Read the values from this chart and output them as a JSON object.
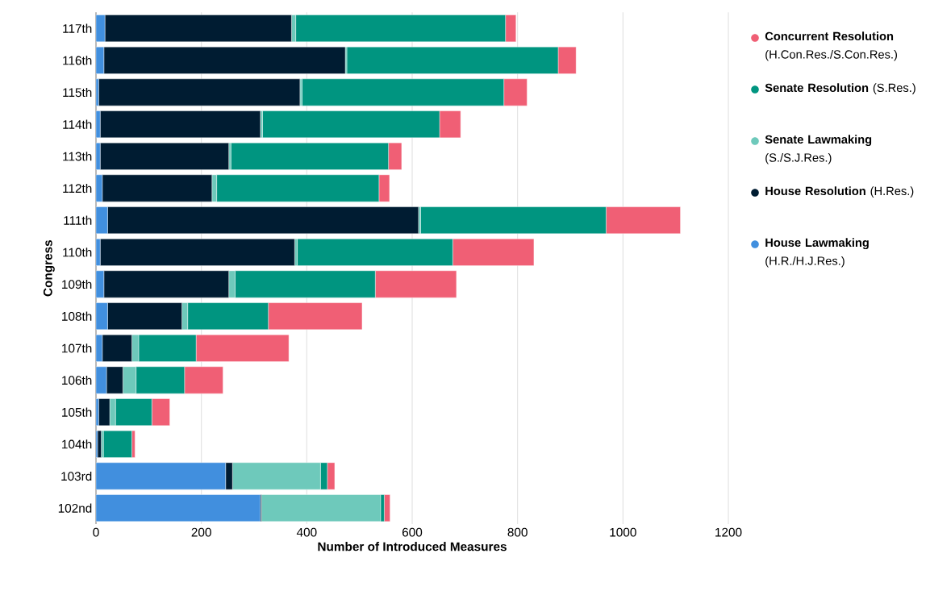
{
  "chart_data": {
    "type": "bar",
    "orientation": "horizontal",
    "stacked": true,
    "categories": [
      "117th",
      "116th",
      "115th",
      "114th",
      "113th",
      "112th",
      "111th",
      "110th",
      "109th",
      "108th",
      "107th",
      "106th",
      "105th",
      "104th",
      "103rd",
      "102nd"
    ],
    "series": [
      {
        "name": "**House Lawmaking** (H.R./H.J.Res.)",
        "color": "#418fde",
        "values": [
          17,
          15,
          5,
          8,
          8,
          12,
          22,
          8,
          15,
          22,
          12,
          20,
          5,
          3,
          246,
          312
        ]
      },
      {
        "name": "**House Resolution** (H.Res.)",
        "color": "#001c32",
        "values": [
          354,
          458,
          382,
          304,
          244,
          208,
          590,
          369,
          237,
          141,
          56,
          31,
          21,
          7,
          13,
          2
        ]
      },
      {
        "name": "**Senate Lawmaking** (S./S.J.Res.)",
        "color": "#6ec9bb",
        "values": [
          8,
          3,
          4,
          4,
          4,
          9,
          4,
          5,
          12,
          11,
          13,
          25,
          11,
          4,
          167,
          226
        ]
      },
      {
        "name": "**Senate Resolution** (S.Res.)",
        "color": "#009580",
        "values": [
          398,
          401,
          383,
          336,
          299,
          308,
          352,
          295,
          266,
          153,
          109,
          92,
          69,
          54,
          13,
          7
        ]
      },
      {
        "name": "**Concurrent Resolution** (H.Con.Res./S.Con.Res.)",
        "color": "#f05f75",
        "values": [
          20,
          34,
          44,
          40,
          25,
          20,
          141,
          154,
          154,
          178,
          176,
          73,
          34,
          6,
          14,
          11
        ]
      }
    ],
    "xlabel": "Number of Introduced Measures",
    "ylabel": "Congress",
    "xlim": [
      0,
      1200
    ],
    "xticks": [
      0,
      200,
      400,
      600,
      800,
      1000,
      1200
    ],
    "grid": "x",
    "legend": "top right"
  }
}
